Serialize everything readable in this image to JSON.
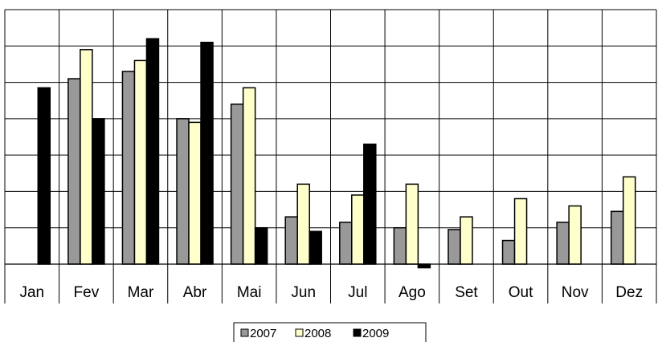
{
  "chart_data": {
    "type": "bar",
    "title": "",
    "xlabel": "",
    "ylabel": "",
    "categories": [
      "Jan",
      "Fev",
      "Mar",
      "Abr",
      "Mai",
      "Jun",
      "Jul",
      "Ago",
      "Set",
      "Out",
      "Nov",
      "Dez"
    ],
    "ylim": [
      0,
      7
    ],
    "gridlines": 7,
    "grid": true,
    "legend_position": "bottom-center",
    "series": [
      {
        "name": "2007",
        "color": "#999999",
        "values": [
          null,
          5.1,
          5.3,
          4.0,
          4.4,
          1.3,
          1.15,
          1.0,
          0.95,
          0.65,
          1.15,
          1.45
        ]
      },
      {
        "name": "2008",
        "color": "#ffffcc",
        "values": [
          null,
          5.9,
          5.6,
          3.9,
          4.85,
          2.2,
          1.9,
          2.2,
          1.3,
          1.8,
          1.6,
          2.4
        ]
      },
      {
        "name": "2009",
        "color": "#000000",
        "values": [
          4.85,
          4.0,
          6.2,
          6.1,
          1.0,
          0.9,
          3.3,
          -0.1,
          null,
          null,
          null,
          null
        ]
      }
    ]
  }
}
